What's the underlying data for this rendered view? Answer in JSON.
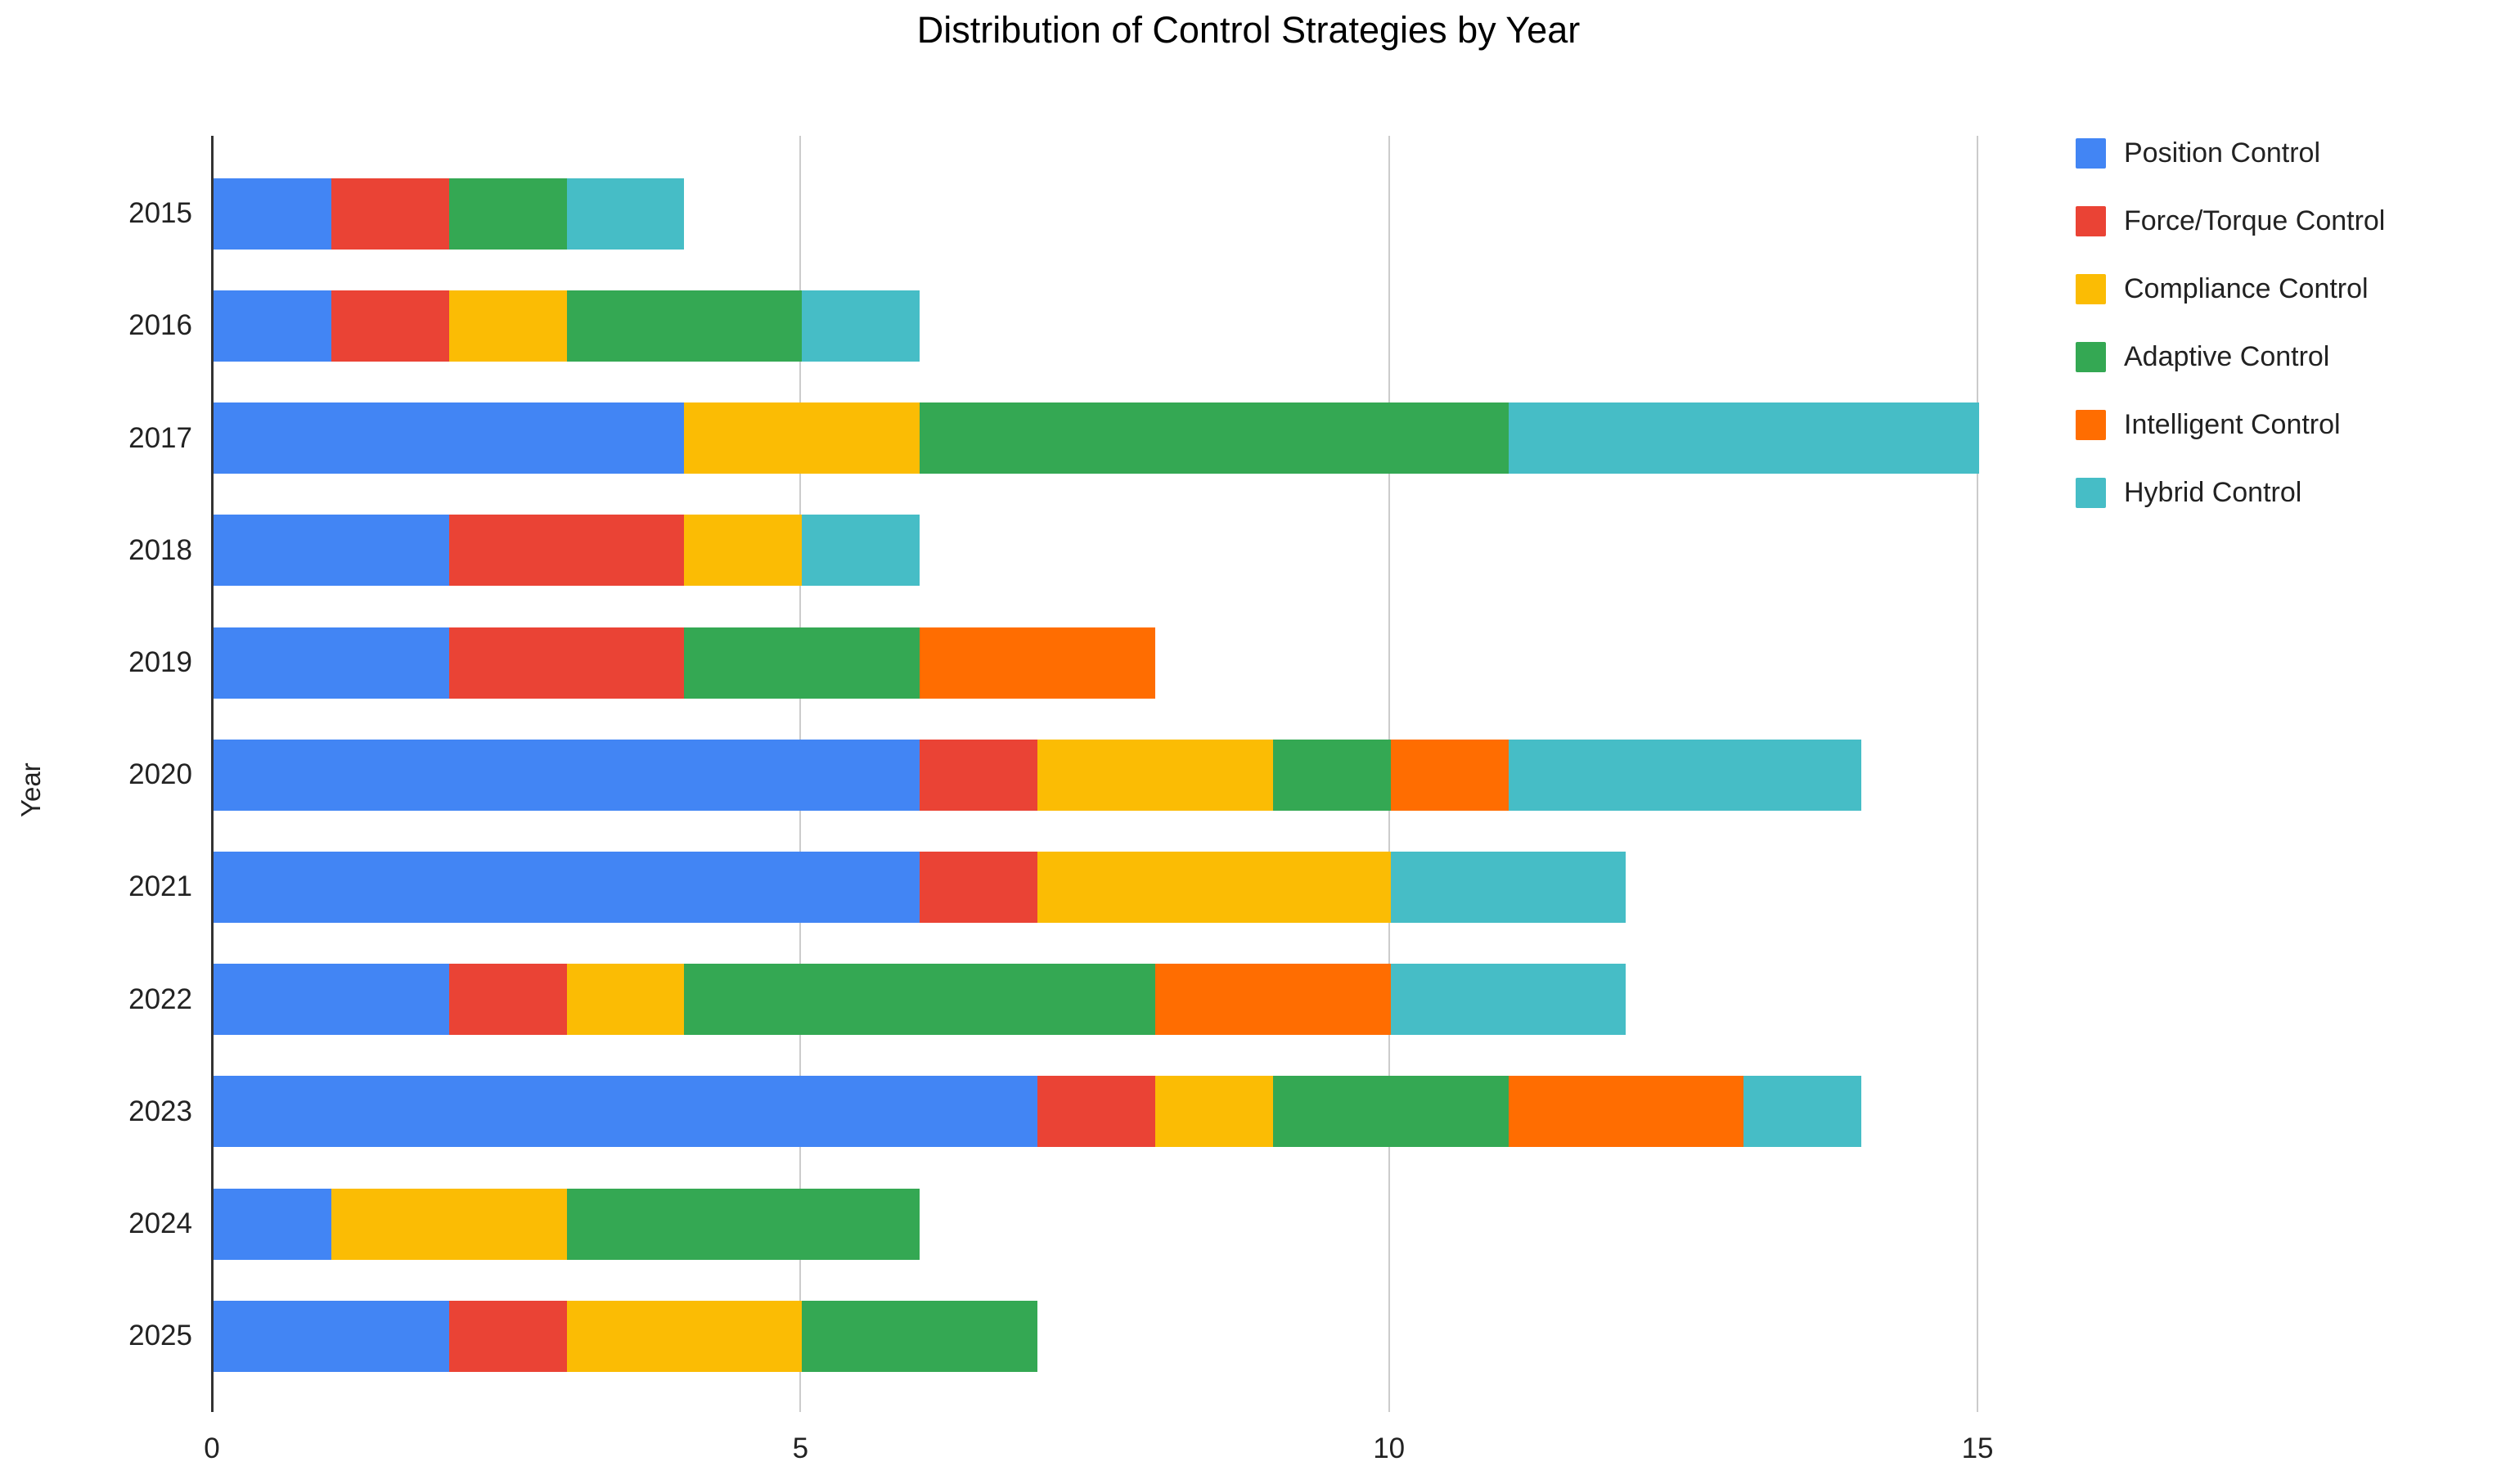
{
  "chart_data": {
    "type": "bar",
    "orientation": "horizontal",
    "stacked": true,
    "title": "Distribution of Control Strategies by Year",
    "xlabel": "",
    "ylabel": "Year",
    "categories": [
      "2015",
      "2016",
      "2017",
      "2018",
      "2019",
      "2020",
      "2021",
      "2022",
      "2023",
      "2024",
      "2025"
    ],
    "series": [
      {
        "name": "Position Control",
        "color": "#4285F4",
        "values": [
          1,
          1,
          4,
          2,
          2,
          6,
          6,
          2,
          7,
          1,
          2
        ]
      },
      {
        "name": "Force/Torque Control",
        "color": "#EA4335",
        "values": [
          1,
          1,
          0,
          2,
          2,
          1,
          1,
          1,
          1,
          0,
          1
        ]
      },
      {
        "name": "Compliance Control",
        "color": "#FBBC04",
        "values": [
          0,
          1,
          2,
          1,
          0,
          2,
          3,
          1,
          1,
          2,
          2
        ]
      },
      {
        "name": "Adaptive Control",
        "color": "#34A853",
        "values": [
          1,
          2,
          5,
          0,
          2,
          1,
          0,
          4,
          2,
          3,
          2
        ]
      },
      {
        "name": "Intelligent Control",
        "color": "#FF6D01",
        "values": [
          0,
          0,
          0,
          0,
          2,
          1,
          0,
          2,
          2,
          0,
          0
        ]
      },
      {
        "name": "Hybrid Control",
        "color": "#46BDC6",
        "values": [
          1,
          1,
          4,
          1,
          0,
          3,
          2,
          2,
          1,
          0,
          0
        ]
      }
    ],
    "totals": [
      4,
      6,
      15,
      6,
      8,
      14,
      12,
      12,
      14,
      6,
      7
    ],
    "x_ticks": [
      0,
      5,
      10,
      15
    ],
    "xlim": [
      0,
      15.37
    ],
    "grid": true,
    "legend_position": "right",
    "axis_color": "#333333",
    "gridline_color": "#cccccc",
    "background_color": "#ffffff"
  }
}
